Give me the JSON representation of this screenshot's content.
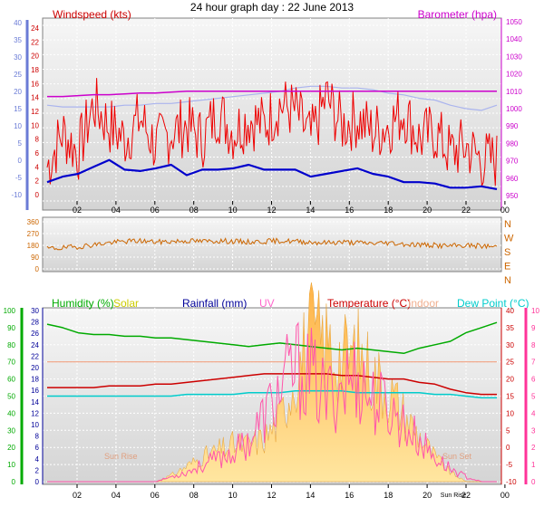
{
  "title": "24 hour graph day : 22 June 2013",
  "colors": {
    "frame_fill_top": "#f4f4f4",
    "frame_fill_bottom": "#d8d8d8",
    "wind": "#ee0000",
    "wind_avg": "#0000cc",
    "temp_thin": "#aab4ee",
    "barometer": "#cc00cc",
    "direction": "#cc6600",
    "humidity": "#00aa00",
    "solar": "#ffcc55",
    "rainfall": "#000099",
    "uv": "#ff55aa",
    "temperature": "#cc0000",
    "indoor": "#f0a080",
    "dewpoint": "#00cccc",
    "humidity_axis": "#00aa00",
    "temp_axis": "#cc0000",
    "uv_axis": "#ff3399",
    "rain_axis": "#000099",
    "baro_axis": "#cc00cc",
    "wind_axis": "#cc0000",
    "left_blue_axis": "#6a7bd6",
    "dir_axis": "#cc6600"
  },
  "x_axis": {
    "ticks": [
      "02",
      "04",
      "06",
      "08",
      "10",
      "12",
      "14",
      "16",
      "18",
      "20",
      "22",
      "00"
    ]
  },
  "chart_data": [
    {
      "type": "line",
      "title": "",
      "legend": [
        "Windspeed (kts)",
        "Barometer (hpa)"
      ],
      "left_outer_ticks": [
        "40",
        "35",
        "30",
        "25",
        "20",
        "15",
        "10",
        "5",
        "0",
        "-5",
        "-10"
      ],
      "wind_ticks": [
        "24",
        "22",
        "20",
        "18",
        "16",
        "14",
        "12",
        "10",
        "8",
        "6",
        "4",
        "2",
        "0"
      ],
      "baro_ticks": [
        "1050",
        "1040",
        "1030",
        "1020",
        "1010",
        "1000",
        "990",
        "980",
        "970",
        "960",
        "950"
      ],
      "ylim_wind": [
        0,
        25
      ],
      "ylim_baro": [
        947,
        1053
      ],
      "series": [
        {
          "name": "Windspeed (kts)",
          "style": "gust",
          "values": [
            4,
            9,
            6,
            13,
            10,
            8,
            11,
            7,
            9,
            10,
            8,
            12,
            9,
            11,
            10,
            13,
            12,
            8,
            14,
            10,
            11,
            9,
            10,
            12,
            8,
            9,
            6,
            7,
            5,
            5
          ]
        },
        {
          "name": "Windspeed (kts)",
          "style": "avg",
          "values": [
            1.8,
            2.6,
            3.0,
            4.0,
            5.0,
            3.6,
            3.4,
            3.8,
            4.3,
            2.8,
            3.6,
            3.6,
            3.8,
            4.3,
            3.6,
            3.6,
            3.6,
            2.6,
            3.0,
            3.4,
            3.8,
            3.0,
            2.6,
            1.8,
            1.8,
            1.6,
            1.0,
            1.0,
            1.2,
            0.8
          ]
        },
        {
          "name": "Barometer (hpa)",
          "values": [
            1007,
            1007,
            1007.5,
            1008,
            1008,
            1008.5,
            1009,
            1009,
            1009.5,
            1010,
            1010,
            1010,
            1010,
            1010,
            1010,
            1010,
            1010,
            1010,
            1010,
            1010,
            1010,
            1010,
            1010,
            1010,
            1010,
            1010,
            1010,
            1010,
            1010,
            1010
          ]
        },
        {
          "name": "Temperature",
          "values": [
            16,
            15.5,
            15.5,
            15.5,
            15.5,
            16,
            16,
            16.5,
            16.5,
            17,
            17.5,
            18,
            18.5,
            19,
            19.5,
            20,
            21,
            21.5,
            21.5,
            21,
            21,
            20.5,
            19.5,
            19,
            18,
            17.5,
            16,
            15,
            14.5,
            16
          ]
        }
      ]
    },
    {
      "type": "line",
      "title": "",
      "left_ticks": [
        "360",
        "270",
        "180",
        "90",
        "0"
      ],
      "compass": [
        "N",
        "W",
        "S",
        "E",
        "N"
      ],
      "ylim": [
        0,
        360
      ],
      "series": [
        {
          "name": "Wind direction",
          "values": [
            155,
            160,
            170,
            185,
            200,
            210,
            215,
            205,
            210,
            215,
            210,
            215,
            210,
            205,
            210,
            215,
            210,
            205,
            200,
            205,
            200,
            195,
            200,
            190,
            185,
            180,
            175,
            180,
            175,
            170
          ]
        }
      ]
    },
    {
      "type": "area",
      "title": "",
      "legend": [
        "Humidity (%)",
        "Solar",
        "Rainfall (mm)",
        "UV",
        "Temperature (°C)",
        "Indoor",
        "Dew Point (°C)"
      ],
      "humidity_ticks": [
        "100",
        "90",
        "80",
        "70",
        "60",
        "50",
        "40",
        "30",
        "20",
        "10",
        "0"
      ],
      "rain_ticks": [
        "30",
        "28",
        "26",
        "24",
        "22",
        "20",
        "18",
        "16",
        "14",
        "12",
        "10",
        "8",
        "6",
        "4",
        "2",
        "0"
      ],
      "temp_ticks": [
        "40",
        "35",
        "30",
        "25",
        "20",
        "15",
        "10",
        "5",
        "0",
        "-5",
        "-10"
      ],
      "uv_ticks": [
        "10",
        "9",
        "8",
        "7",
        "6",
        "5",
        "4",
        "3",
        "2",
        "1",
        "0"
      ],
      "annotations": [
        "Sun Rise",
        "Sun Set"
      ],
      "extra_tick": "Sun Rise",
      "ylim_humidity": [
        0,
        100
      ],
      "ylim_temp": [
        -10,
        40
      ],
      "series": [
        {
          "name": "Humidity (%)",
          "values": [
            92,
            90,
            87,
            86,
            86,
            85,
            85,
            84,
            84,
            83,
            82,
            81,
            80,
            79,
            80,
            81,
            80,
            79,
            78,
            77,
            78,
            77,
            76,
            75,
            78,
            80,
            82,
            87,
            90,
            93
          ]
        },
        {
          "name": "Temperature (°C)",
          "values": [
            17.5,
            17.5,
            17.5,
            17.5,
            18,
            18,
            18,
            18.5,
            18.5,
            19,
            19.5,
            20,
            20.5,
            21,
            21.5,
            21.5,
            21.5,
            21.5,
            21.5,
            21,
            21,
            20.5,
            20,
            20,
            19,
            18.5,
            17,
            16,
            15.5,
            15.5
          ]
        },
        {
          "name": "Indoor",
          "values": [
            25,
            25,
            25,
            25,
            25,
            25,
            25,
            25,
            25,
            25,
            25,
            25,
            25,
            25,
            25,
            25,
            25,
            25,
            25,
            25,
            25,
            25,
            25,
            25,
            25,
            25,
            25,
            25,
            25,
            25
          ]
        },
        {
          "name": "Dew Point (°C)",
          "values": [
            15,
            15,
            15,
            15,
            15,
            15,
            15,
            15,
            15,
            15.5,
            15.5,
            15.5,
            15.5,
            16,
            16,
            16,
            16.5,
            16.5,
            16.5,
            16.5,
            16,
            16,
            16,
            16,
            16,
            15.5,
            15.5,
            15,
            14.5,
            14.5
          ]
        },
        {
          "name": "Solar",
          "values": [
            0,
            0,
            0,
            0,
            0,
            0,
            0,
            0,
            2,
            5,
            8,
            10,
            12,
            12,
            14,
            20,
            35,
            48,
            45,
            40,
            42,
            35,
            30,
            22,
            15,
            8,
            3,
            0,
            0,
            0
          ]
        },
        {
          "name": "UV",
          "values": [
            0,
            0,
            0,
            0,
            0,
            0,
            0,
            0,
            0.3,
            0.6,
            1.0,
            1.4,
            1.8,
            2.5,
            4.0,
            5.5,
            7.0,
            6.5,
            5.0,
            6.0,
            6.5,
            5.0,
            4.5,
            3.5,
            2.5,
            1.5,
            0.8,
            0.3,
            0,
            0
          ]
        }
      ]
    }
  ]
}
